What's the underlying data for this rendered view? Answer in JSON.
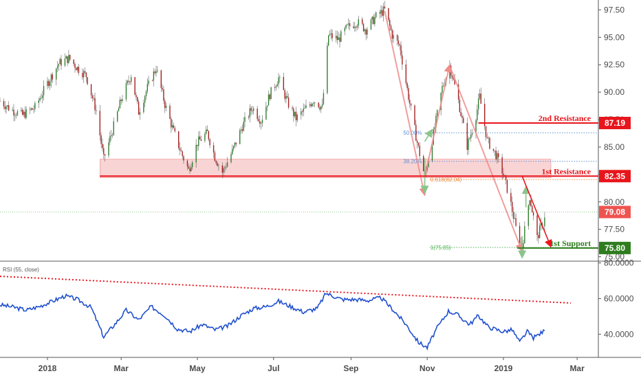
{
  "chart_data": {
    "type": "candlestick",
    "price_axis": {
      "ylim": [
        74.6,
        98.4
      ],
      "ticks": [
        "97.50",
        "95.00",
        "92.50",
        "90.00",
        "87.50",
        "85.00",
        "82.50",
        "80.00",
        "77.50",
        "75.00"
      ]
    },
    "x_axis": {
      "xlim": [
        "2017-11-24",
        "2019-03-18"
      ],
      "ticks": [
        {
          "date": "2018-01-01",
          "label": "2018"
        },
        {
          "date": "2018-03-01",
          "label": "Mar"
        },
        {
          "date": "2018-05-01",
          "label": "May"
        },
        {
          "date": "2018-07-01",
          "label": "Jul"
        },
        {
          "date": "2018-09-01",
          "label": "Sep"
        },
        {
          "date": "2018-11-01",
          "label": "Nov"
        },
        {
          "date": "2019-01-01",
          "label": "2019"
        },
        {
          "date": "2019-03-01",
          "label": "Mar"
        }
      ]
    },
    "price_path": [
      [
        "2017-11-24",
        89.2
      ],
      [
        "2017-12-03",
        88.4
      ],
      [
        "2017-12-12",
        87.9
      ],
      [
        "2017-12-22",
        88.6
      ],
      [
        "2018-01-01",
        90.8
      ],
      [
        "2018-01-10",
        92.6
      ],
      [
        "2018-01-18",
        93.1
      ],
      [
        "2018-01-25",
        92.2
      ],
      [
        "2018-02-01",
        91.5
      ],
      [
        "2018-02-09",
        88.3
      ],
      [
        "2018-02-15",
        83.9
      ],
      [
        "2018-02-22",
        86.5
      ],
      [
        "2018-03-01",
        89.3
      ],
      [
        "2018-03-09",
        91.6
      ],
      [
        "2018-03-15",
        88.2
      ],
      [
        "2018-03-22",
        90.4
      ],
      [
        "2018-03-29",
        92.2
      ],
      [
        "2018-04-05",
        88.9
      ],
      [
        "2018-04-12",
        86.4
      ],
      [
        "2018-04-19",
        84.2
      ],
      [
        "2018-04-24",
        82.9
      ],
      [
        "2018-05-01",
        85.4
      ],
      [
        "2018-05-09",
        86.3
      ],
      [
        "2018-05-15",
        84.1
      ],
      [
        "2018-05-21",
        82.7
      ],
      [
        "2018-05-29",
        84.6
      ],
      [
        "2018-06-06",
        86.9
      ],
      [
        "2018-06-14",
        88.6
      ],
      [
        "2018-06-21",
        87.4
      ],
      [
        "2018-06-28",
        89.8
      ],
      [
        "2018-07-05",
        91.3
      ],
      [
        "2018-07-12",
        89.1
      ],
      [
        "2018-07-19",
        87.6
      ],
      [
        "2018-07-26",
        88.4
      ],
      [
        "2018-08-02",
        89.3
      ],
      [
        "2018-08-09",
        88.6
      ],
      [
        "2018-08-14",
        95.2
      ],
      [
        "2018-08-22",
        94.8
      ],
      [
        "2018-08-29",
        95.9
      ],
      [
        "2018-09-06",
        96.4
      ],
      [
        "2018-09-13",
        95.7
      ],
      [
        "2018-09-21",
        96.9
      ],
      [
        "2018-09-28",
        97.5
      ],
      [
        "2018-10-04",
        95.2
      ],
      [
        "2018-10-10",
        94.2
      ],
      [
        "2018-10-17",
        89.6
      ],
      [
        "2018-10-24",
        85.4
      ],
      [
        "2018-10-30",
        82.3
      ],
      [
        "2018-11-06",
        86.2
      ],
      [
        "2018-11-13",
        90.4
      ],
      [
        "2018-11-19",
        92.4
      ],
      [
        "2018-11-26",
        89.2
      ],
      [
        "2018-12-03",
        85.1
      ],
      [
        "2018-12-09",
        87.3
      ],
      [
        "2018-12-13",
        89.6
      ],
      [
        "2018-12-19",
        85.6
      ],
      [
        "2018-12-26",
        84.3
      ],
      [
        "2019-01-01",
        82.5
      ],
      [
        "2019-01-06",
        80.3
      ],
      [
        "2019-01-11",
        77.6
      ],
      [
        "2019-01-16",
        75.9
      ],
      [
        "2019-01-22",
        80.5
      ],
      [
        "2019-01-28",
        76.7
      ],
      [
        "2019-02-03",
        78.8
      ]
    ],
    "levels": [
      {
        "label": "2nd Resistance",
        "value": "87.19",
        "color": "#e8151c"
      },
      {
        "label": "1st Resistance",
        "value": "82.35",
        "color": "#e8151c"
      },
      {
        "label": "1st Support",
        "value": "75.80",
        "color": "#2e7d1e"
      }
    ],
    "current_price": {
      "value": "79.08",
      "color": "#ef5350"
    },
    "resistance_zone": [
      82.2,
      83.9
    ],
    "fibonacci": [
      {
        "label": "50.00%",
        "value": 86.3
      },
      {
        "label": "38.20%",
        "value": 83.7
      },
      {
        "label": "0.618(82.04)",
        "value": 82.04
      },
      {
        "label": "1(75.85)",
        "value": 75.85
      }
    ],
    "indicator": {
      "name": "RSI (55, close)",
      "ylim": [
        27,
        81
      ],
      "ticks": [
        "80.0000",
        "60.0000",
        "40.0000"
      ],
      "rsi_path": [
        [
          "2017-11-24",
          56.5
        ],
        [
          "2017-12-05",
          55.2
        ],
        [
          "2017-12-15",
          53.5
        ],
        [
          "2017-12-25",
          55.5
        ],
        [
          "2018-01-05",
          58.5
        ],
        [
          "2018-01-15",
          61.5
        ],
        [
          "2018-01-25",
          59.5
        ],
        [
          "2018-02-05",
          55.0
        ],
        [
          "2018-02-15",
          38.5
        ],
        [
          "2018-02-25",
          46.5
        ],
        [
          "2018-03-05",
          53.5
        ],
        [
          "2018-03-15",
          48.0
        ],
        [
          "2018-03-25",
          55.5
        ],
        [
          "2018-04-05",
          50.5
        ],
        [
          "2018-04-15",
          43.0
        ],
        [
          "2018-04-25",
          41.5
        ],
        [
          "2018-05-05",
          45.5
        ],
        [
          "2018-05-15",
          42.5
        ],
        [
          "2018-05-25",
          44.5
        ],
        [
          "2018-06-05",
          50.5
        ],
        [
          "2018-06-15",
          54.5
        ],
        [
          "2018-06-25",
          55.5
        ],
        [
          "2018-07-05",
          58.5
        ],
        [
          "2018-07-15",
          55.5
        ],
        [
          "2018-07-25",
          52.5
        ],
        [
          "2018-08-05",
          54.5
        ],
        [
          "2018-08-12",
          63.0
        ],
        [
          "2018-08-25",
          59.5
        ],
        [
          "2018-09-05",
          59.5
        ],
        [
          "2018-09-15",
          59.0
        ],
        [
          "2018-09-25",
          60.5
        ],
        [
          "2018-10-05",
          53.5
        ],
        [
          "2018-10-15",
          45.5
        ],
        [
          "2018-10-25",
          35.5
        ],
        [
          "2018-11-01",
          32.5
        ],
        [
          "2018-11-08",
          42.5
        ],
        [
          "2018-11-18",
          53.0
        ],
        [
          "2018-11-25",
          51.0
        ],
        [
          "2018-12-05",
          45.5
        ],
        [
          "2018-12-12",
          50.5
        ],
        [
          "2018-12-20",
          44.0
        ],
        [
          "2019-01-01",
          41.5
        ],
        [
          "2019-01-08",
          42.5
        ],
        [
          "2019-01-14",
          35.5
        ],
        [
          "2019-01-20",
          41.5
        ],
        [
          "2019-01-25",
          38.0
        ],
        [
          "2019-02-03",
          42.0
        ]
      ],
      "trendline": [
        [
          "2017-11-24",
          72.5
        ],
        [
          "2019-02-24",
          57.5
        ]
      ]
    }
  }
}
